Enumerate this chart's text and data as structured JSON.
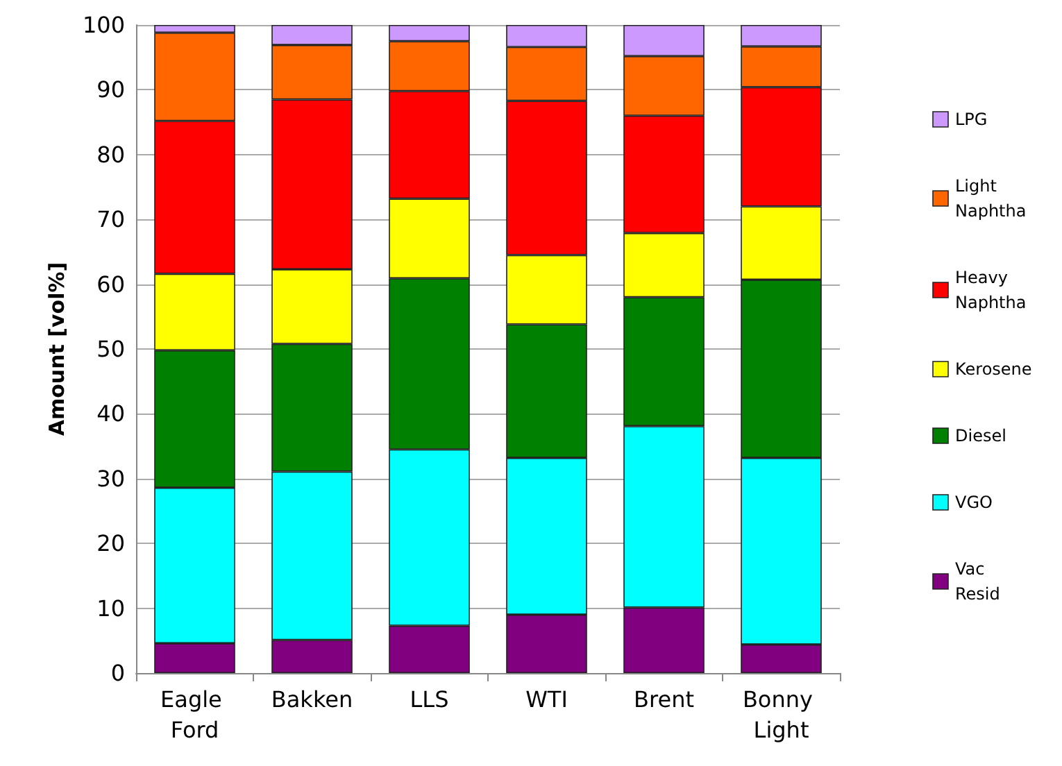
{
  "chart_data": {
    "type": "bar",
    "stacked": true,
    "ylabel": "Amount [vol%]",
    "categories": [
      "Eagle Ford",
      "Bakken",
      "LLS",
      "WTI",
      "Brent",
      "Bonny Light"
    ],
    "series": [
      {
        "name": "Vac Resid",
        "color": "#800080",
        "values": [
          4.6,
          5.1,
          7.3,
          9.0,
          10.1,
          4.4
        ]
      },
      {
        "name": "VGO",
        "color": "#00ffff",
        "values": [
          24.0,
          26.0,
          27.2,
          24.2,
          28.0,
          28.8
        ]
      },
      {
        "name": "Diesel",
        "color": "#008000",
        "values": [
          21.2,
          19.7,
          26.4,
          20.6,
          19.9,
          27.5
        ]
      },
      {
        "name": "Kerosene",
        "color": "#ffff00",
        "values": [
          11.8,
          11.5,
          12.3,
          10.7,
          9.9,
          11.3
        ]
      },
      {
        "name": "Heavy Naphtha",
        "color": "#ff0000",
        "values": [
          23.6,
          26.2,
          16.6,
          23.8,
          18.1,
          18.4
        ]
      },
      {
        "name": "Light Naphtha",
        "color": "#ff6600",
        "values": [
          13.6,
          8.4,
          7.7,
          8.3,
          9.2,
          6.3
        ]
      },
      {
        "name": "LPG",
        "color": "#cc99ff",
        "values": [
          1.2,
          3.1,
          2.5,
          3.4,
          4.8,
          3.3
        ]
      }
    ],
    "ylim": [
      0,
      100
    ],
    "yticks": [
      0,
      10,
      20,
      30,
      40,
      50,
      60,
      70,
      80,
      90,
      100
    ],
    "grid": "y",
    "legend": "right"
  }
}
